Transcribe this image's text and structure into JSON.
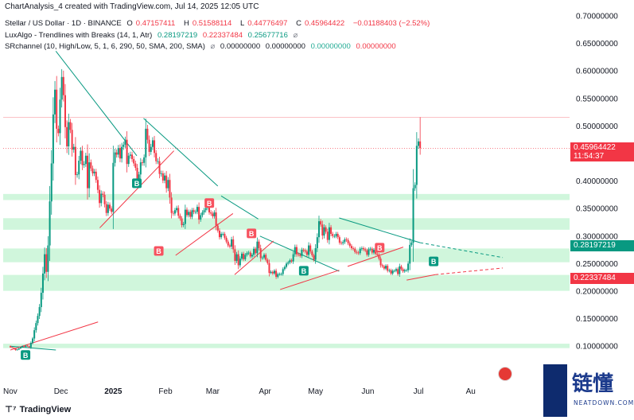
{
  "header": {
    "created_line": "ChartAnalysis_4 created with TradingView.com, Jul 14, 2025 12:05 UTC",
    "symbol": "Stellar / US Dollar · 1D · BINANCE",
    "o_label": "O",
    "o_value": "0.47157411",
    "h_label": "H",
    "h_value": "0.51588114",
    "l_label": "L",
    "l_value": "0.44776497",
    "c_label": "C",
    "c_value": "0.45964422",
    "change": "−0.01188403 (−2.52%)"
  },
  "indicators": [
    {
      "name": "LuxAlgo - Trendlines with Breaks (14, 1, Atr)",
      "values": [
        "0.28197219",
        "0.22337484",
        "0.25677716"
      ]
    },
    {
      "name": "SRchannel (10, High/Low, 5, 1, 6, 290, 50, SMA, 200, SMA)",
      "values": [
        "0.00000000",
        "0.00000000",
        "0.00000000",
        "0.00000000"
      ]
    }
  ],
  "footer": {
    "brand": "TradingView"
  },
  "watermark": {
    "main": "链懂",
    "sub": "NEATDOWN.COM"
  },
  "price_tags": [
    {
      "label": "0.45964422",
      "sub": "11:54:37",
      "value": 0.4596,
      "color": "#f23645"
    },
    {
      "label": "0.28197219",
      "value": 0.282,
      "color": "#089981"
    },
    {
      "label": "0.22337484",
      "value": 0.2234,
      "color": "#f23645"
    }
  ],
  "colors": {
    "up": "#089981",
    "down": "#f23645",
    "zone": "#c8f5d6",
    "trend_down": "#089981",
    "trend_up": "#f23645"
  },
  "chart_data": {
    "type": "candlestick",
    "y_axis_labels": [
      "0.70000000",
      "0.65000000",
      "0.60000000",
      "0.55000000",
      "0.50000000",
      "0.45000000",
      "0.40000000",
      "0.35000000",
      "0.30000000",
      "0.25000000",
      "0.20000000",
      "0.15000000",
      "0.10000000"
    ],
    "y_axis_values": [
      0.7,
      0.65,
      0.6,
      0.55,
      0.5,
      0.45,
      0.4,
      0.35,
      0.3,
      0.25,
      0.2,
      0.15,
      0.1
    ],
    "x_axis_labels": [
      "Nov",
      "Dec",
      "2025",
      "Feb",
      "Mar",
      "Apr",
      "May",
      "Jun",
      "Jul",
      "Au"
    ],
    "x_axis_days": [
      0,
      30,
      61,
      92,
      120,
      151,
      181,
      212,
      242,
      273
    ],
    "ylim": [
      0.05,
      0.72
    ],
    "xlim": [
      0,
      288
    ],
    "sr_zones": [
      [
        0.0965,
        0.1045
      ],
      [
        0.2005,
        0.2295
      ],
      [
        0.2525,
        0.2775
      ],
      [
        0.3115,
        0.3325
      ],
      [
        0.3655,
        0.3765
      ]
    ],
    "trendlines_down": [
      {
        "x1": 0,
        "y1": 0.1,
        "x2": 27,
        "y2": 0.093
      },
      {
        "x1": 27,
        "y1": 0.636,
        "x2": 75,
        "y2": 0.446
      },
      {
        "x1": 79,
        "y1": 0.514,
        "x2": 123,
        "y2": 0.391
      },
      {
        "x1": 125,
        "y1": 0.373,
        "x2": 147,
        "y2": 0.331
      },
      {
        "x1": 148,
        "y1": 0.3,
        "x2": 195,
        "y2": 0.236
      },
      {
        "x1": 195,
        "y1": 0.333,
        "x2": 243,
        "y2": 0.288
      },
      {
        "x1": 243,
        "y1": 0.288,
        "x2": 292,
        "y2": 0.261
      }
    ],
    "trendlines_up": [
      {
        "x1": 0,
        "y1": 0.093,
        "x2": 52,
        "y2": 0.144
      },
      {
        "x1": 53,
        "y1": 0.315,
        "x2": 97,
        "y2": 0.455
      },
      {
        "x1": 98,
        "y1": 0.265,
        "x2": 132,
        "y2": 0.341
      },
      {
        "x1": 133,
        "y1": 0.23,
        "x2": 156,
        "y2": 0.291
      },
      {
        "x1": 160,
        "y1": 0.203,
        "x2": 195,
        "y2": 0.238
      },
      {
        "x1": 200,
        "y1": 0.245,
        "x2": 233,
        "y2": 0.28
      },
      {
        "x1": 235,
        "y1": 0.22,
        "x2": 252,
        "y2": 0.23
      },
      {
        "x1": 252,
        "y1": 0.23,
        "x2": 292,
        "y2": 0.242
      }
    ],
    "break_markers": [
      {
        "day": 9,
        "price": 0.084,
        "label": "B",
        "kind": "buy"
      },
      {
        "day": 88,
        "price": 0.273,
        "label": "B",
        "kind": "sell"
      },
      {
        "day": 75,
        "price": 0.396,
        "label": "B",
        "kind": "buy"
      },
      {
        "day": 118,
        "price": 0.36,
        "label": "B",
        "kind": "sell"
      },
      {
        "day": 143,
        "price": 0.305,
        "label": "B",
        "kind": "sell"
      },
      {
        "day": 174,
        "price": 0.237,
        "label": "B",
        "kind": "buy"
      },
      {
        "day": 219,
        "price": 0.279,
        "label": "B",
        "kind": "sell"
      },
      {
        "day": 251,
        "price": 0.254,
        "label": "B",
        "kind": "buy"
      }
    ],
    "closes": [
      0.098,
      0.097,
      0.096,
      0.093,
      0.094,
      0.096,
      0.098,
      0.1,
      0.099,
      0.101,
      0.1,
      0.098,
      0.106,
      0.114,
      0.129,
      0.142,
      0.155,
      0.171,
      0.197,
      0.232,
      0.267,
      0.235,
      0.283,
      0.363,
      0.432,
      0.521,
      0.566,
      0.495,
      0.487,
      0.548,
      0.589,
      0.556,
      0.498,
      0.463,
      0.507,
      0.493,
      0.457,
      0.462,
      0.411,
      0.412,
      0.437,
      0.455,
      0.429,
      0.431,
      0.446,
      0.387,
      0.434,
      0.423,
      0.414,
      0.417,
      0.402,
      0.384,
      0.36,
      0.377,
      0.375,
      0.358,
      0.342,
      0.357,
      0.35,
      0.344,
      0.433,
      0.452,
      0.448,
      0.46,
      0.441,
      0.462,
      0.466,
      0.475,
      0.431,
      0.446,
      0.448,
      0.44,
      0.432,
      0.424,
      0.404,
      0.412,
      0.434,
      0.433,
      0.443,
      0.495,
      0.475,
      0.453,
      0.462,
      0.474,
      0.451,
      0.436,
      0.436,
      0.413,
      0.414,
      0.401,
      0.41,
      0.387,
      0.402,
      0.37,
      0.342,
      0.341,
      0.347,
      0.351,
      0.337,
      0.332,
      0.32,
      0.322,
      0.348,
      0.338,
      0.344,
      0.335,
      0.347,
      0.344,
      0.344,
      0.353,
      0.33,
      0.338,
      0.343,
      0.347,
      0.351,
      0.353,
      0.343,
      0.341,
      0.336,
      0.343,
      0.319,
      0.31,
      0.298,
      0.304,
      0.304,
      0.297,
      0.29,
      0.283,
      0.281,
      0.294,
      0.276,
      0.255,
      0.267,
      0.247,
      0.259,
      0.268,
      0.258,
      0.266,
      0.269,
      0.27,
      0.263,
      0.266,
      0.277,
      0.269,
      0.29,
      0.278,
      0.26,
      0.261,
      0.266,
      0.257,
      0.251,
      0.233,
      0.235,
      0.232,
      0.237,
      0.226,
      0.231,
      0.231,
      0.231,
      0.24,
      0.244,
      0.25,
      0.252,
      0.256,
      0.254,
      0.267,
      0.28,
      0.267,
      0.266,
      0.264,
      0.275,
      0.274,
      0.272,
      0.266,
      0.283,
      0.272,
      0.265,
      0.257,
      0.278,
      0.298,
      0.327,
      0.321,
      0.301,
      0.316,
      0.308,
      0.293,
      0.316,
      0.304,
      0.3,
      0.3,
      0.304,
      0.298,
      0.288,
      0.287,
      0.289,
      0.294,
      0.293,
      0.287,
      0.282,
      0.278,
      0.277,
      0.271,
      0.27,
      0.269,
      0.277,
      0.278,
      0.276,
      0.274,
      0.266,
      0.276,
      0.277,
      0.27,
      0.275,
      0.268,
      0.266,
      0.259,
      0.247,
      0.245,
      0.241,
      0.246,
      0.237,
      0.238,
      0.232,
      0.237,
      0.237,
      0.24,
      0.231,
      0.245,
      0.24,
      0.236,
      0.238,
      0.238,
      0.25,
      0.284,
      0.288,
      0.387,
      0.393,
      0.464,
      0.472,
      0.46
    ]
  }
}
